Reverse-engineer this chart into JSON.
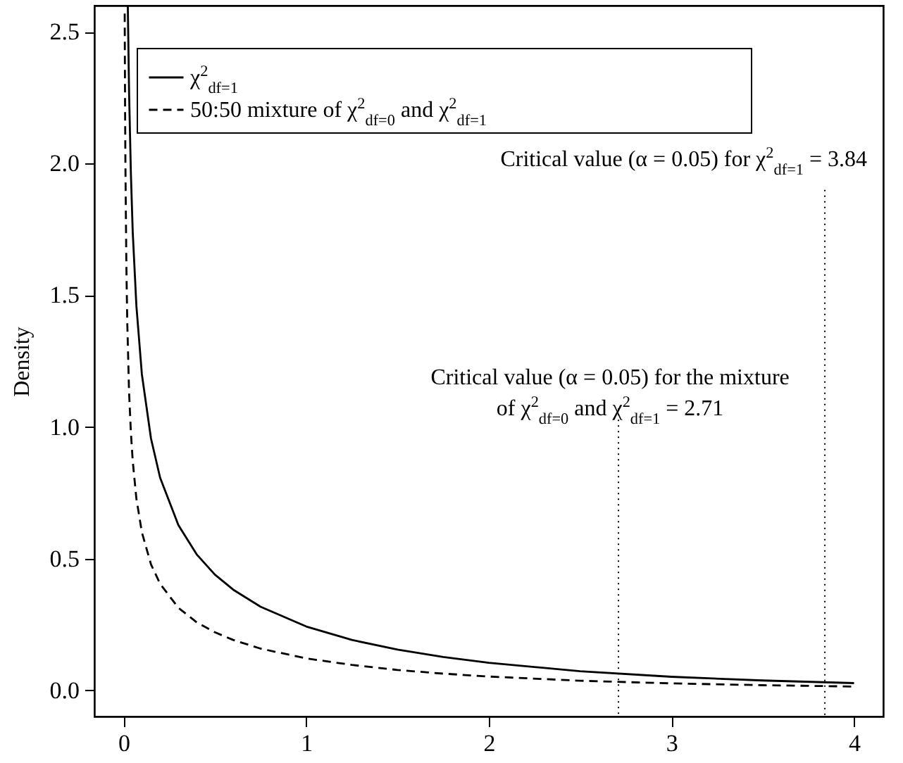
{
  "chart_data": {
    "type": "line",
    "ylabel": "Density",
    "xlim": [
      -0.16,
      4.16
    ],
    "ylim": [
      -0.1,
      2.6
    ],
    "xticks": [
      0,
      1,
      2,
      3,
      4
    ],
    "yticks": [
      {
        "value": 0,
        "label": "0.0"
      },
      0.5,
      {
        "value": 1,
        "label": "1.0"
      },
      1.5,
      {
        "value": 2,
        "label": "2.0"
      },
      2.5
    ],
    "grid": false,
    "legend": "top left",
    "marker": "none",
    "series": [
      {
        "name": "χ$^{2}$$_{df=1}$",
        "color": "#000000",
        "line_style": "solid",
        "x": [
          0.023,
          0.03,
          0.04,
          0.05,
          0.07,
          0.1,
          0.15,
          0.2,
          0.3,
          0.4,
          0.5,
          0.6,
          0.75,
          1,
          1.25,
          1.5,
          1.75,
          2,
          2.5,
          3,
          3.5,
          4
        ],
        "values": [
          2.6,
          2.27,
          1.96,
          1.74,
          1.46,
          1.2,
          0.956,
          0.807,
          0.627,
          0.516,
          0.439,
          0.382,
          0.317,
          0.242,
          0.191,
          0.154,
          0.126,
          0.104,
          0.072,
          0.051,
          0.037,
          0.027
        ]
      },
      {
        "name": "50:50 mixture of χ$^{2}$$_{df=0}$ and χ$^{2}$$_{df=1}$",
        "color": "#000000",
        "line_style": "dashed",
        "x": [
          0.006,
          0.008,
          0.01,
          0.015,
          0.02,
          0.03,
          0.04,
          0.05,
          0.07,
          0.1,
          0.15,
          0.2,
          0.3,
          0.4,
          0.5,
          0.6,
          0.75,
          1,
          1.25,
          1.5,
          1.75,
          2,
          2.5,
          3,
          3.5,
          4
        ],
        "values": [
          2.57,
          2.22,
          1.99,
          1.62,
          1.4,
          1.13,
          0.978,
          0.87,
          0.728,
          0.6,
          0.478,
          0.404,
          0.313,
          0.258,
          0.22,
          0.191,
          0.158,
          0.121,
          0.096,
          0.077,
          0.063,
          0.052,
          0.036,
          0.026,
          0.019,
          0.014
        ]
      }
    ],
    "ref_lines": [
      {
        "axis": "x",
        "value": 2.71,
        "line_style": "dotted",
        "color": "#000000"
      },
      {
        "axis": "x",
        "value": 3.84,
        "line_style": "dotted",
        "color": "#000000"
      }
    ],
    "annotations": [
      {
        "text": "Critical value (α = 0.05) for the mixture\nof χ$^{2}$$_{df=0}$ and χ$^{2}$$_{df=1}$ = 2.71",
        "x": 2.71,
        "y": 1.07
      },
      {
        "text": "Critical value (α = 0.05) for χ$^{2}$$_{df=1}$ = 3.84",
        "x": 3.84,
        "y": 1.9
      }
    ]
  }
}
